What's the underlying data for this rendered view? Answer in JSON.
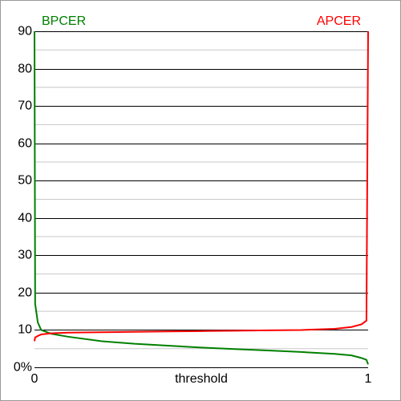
{
  "chart_data": {
    "type": "line",
    "x_label": "threshold",
    "x": [
      0,
      0.002,
      0.01,
      0.02,
      0.05,
      0.1,
      0.2,
      0.3,
      0.4,
      0.5,
      0.6,
      0.7,
      0.8,
      0.9,
      0.95,
      0.98,
      0.995,
      1
    ],
    "series": [
      {
        "name": "BPCER",
        "color": "#008000",
        "values": [
          90,
          17,
          12,
          10,
          9,
          8.2,
          7,
          6.3,
          5.8,
          5.3,
          4.9,
          4.5,
          4.1,
          3.6,
          3.2,
          2.5,
          2,
          0.8
        ]
      },
      {
        "name": "APCER",
        "color": "#ff0000",
        "values": [
          7,
          8,
          8.4,
          8.8,
          9.1,
          9.3,
          9.4,
          9.5,
          9.6,
          9.7,
          9.8,
          9.9,
          10,
          10.3,
          10.8,
          11.5,
          12.5,
          90
        ]
      }
    ],
    "xlim": [
      0,
      1
    ],
    "xticks": [
      0,
      1
    ],
    "ylim": [
      0,
      90
    ],
    "yticks": [
      {
        "value": 0,
        "label": "0%"
      },
      10,
      20,
      30,
      40,
      50,
      60,
      70,
      80,
      90
    ],
    "minor_yticks": [
      5,
      15,
      25,
      35,
      45,
      55,
      65,
      75,
      85
    ],
    "grid": true
  }
}
